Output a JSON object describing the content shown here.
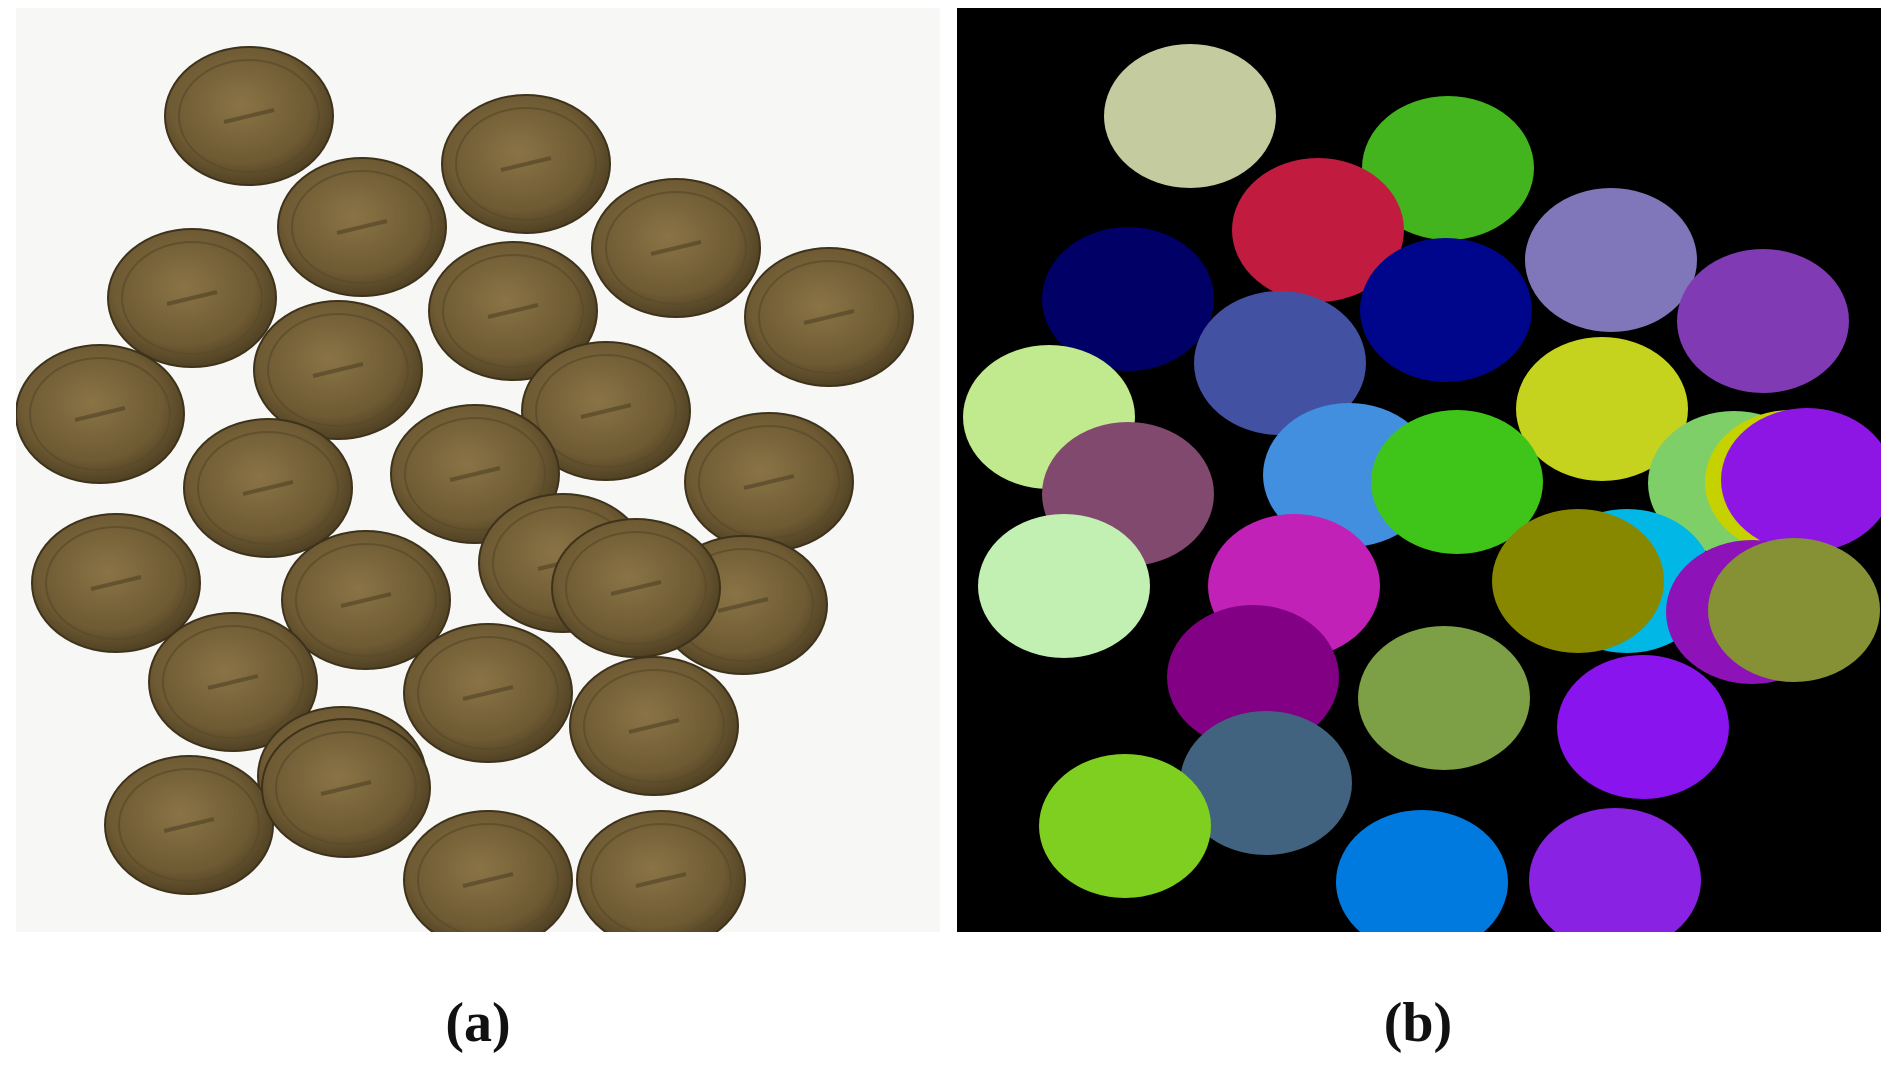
{
  "figure": {
    "caption_a": "(a)",
    "caption_b": "(b)"
  },
  "panel_a": {
    "background": "#f7f7f5",
    "coin_color": "#6e5a33",
    "coin_count": 26
  },
  "panel_b": {
    "background": "#000000",
    "segment_colors": [
      "#c3cb9f",
      "#43b31e",
      "#c21b40",
      "#8077ba",
      "#000066",
      "#00068b",
      "#7f3ab4",
      "#4251a1",
      "#c1e98d",
      "#c6d31e",
      "#81496e",
      "#428fe0",
      "#3fc51a",
      "#7ecf68",
      "#c6d200",
      "#8e16e5",
      "#c1f0b2",
      "#c121b6",
      "#00b7e5",
      "#888800",
      "#8d12b8",
      "#869135",
      "#820083",
      "#7d9f45",
      "#8a14ee",
      "#41637f",
      "#7fcf20",
      "#007ade",
      "#8a22e4"
    ]
  }
}
